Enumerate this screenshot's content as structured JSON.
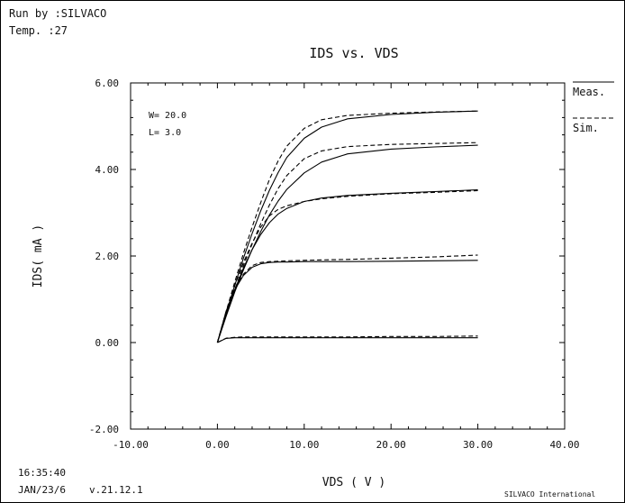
{
  "header": {
    "run_by": "Run by :SILVACO",
    "temp": "Temp.  :27"
  },
  "footer": {
    "time": "16:35:40",
    "date": "JAN/23/6",
    "version": "v.21.12.1",
    "company": "SILVACO International"
  },
  "legend": {
    "meas": "Meas.",
    "sim": "Sim."
  },
  "annotations": {
    "w": "W= 20.0",
    "l": "L= 3.0"
  },
  "chart_data": {
    "type": "line",
    "title": "IDS vs. VDS",
    "xlabel": "VDS ( V )",
    "ylabel": "IDS( mA )",
    "xlim": [
      -10,
      40
    ],
    "ylim": [
      -2,
      6
    ],
    "xticks": [
      -10,
      0,
      10,
      20,
      30,
      40
    ],
    "yticks": [
      -2,
      0,
      2,
      4,
      6
    ],
    "xtick_labels": [
      "-10.00",
      "0.00",
      "10.00",
      "20.00",
      "30.00",
      "40.00"
    ],
    "ytick_labels": [
      "-2.00",
      "0.00",
      "2.00",
      "4.00",
      "6.00"
    ],
    "grid": false,
    "legend_position": "right",
    "series": [
      {
        "name": "Meas.",
        "style": "solid",
        "x": [
          0,
          1,
          2,
          3,
          4,
          5,
          6,
          7,
          8,
          10,
          12,
          15,
          20,
          25,
          30
        ],
        "y": [
          0,
          0.095,
          0.11,
          0.11,
          0.11,
          0.11,
          0.11,
          0.11,
          0.11,
          0.11,
          0.11,
          0.11,
          0.11,
          0.11,
          0.11
        ]
      },
      {
        "name": "Sim.",
        "style": "dashed",
        "x": [
          0,
          1,
          2,
          3,
          4,
          5,
          6,
          7,
          8,
          10,
          12,
          15,
          20,
          25,
          30
        ],
        "y": [
          0,
          0.1,
          0.12,
          0.13,
          0.13,
          0.13,
          0.13,
          0.13,
          0.13,
          0.13,
          0.13,
          0.13,
          0.14,
          0.14,
          0.15
        ]
      },
      {
        "name": "Meas.",
        "style": "solid",
        "x": [
          0,
          1,
          2,
          3,
          4,
          5,
          6,
          7,
          8,
          10,
          12,
          15,
          20,
          25,
          30
        ],
        "y": [
          0,
          0.72,
          1.22,
          1.55,
          1.74,
          1.82,
          1.85,
          1.86,
          1.86,
          1.87,
          1.87,
          1.87,
          1.88,
          1.89,
          1.9
        ]
      },
      {
        "name": "Sim.",
        "style": "dashed",
        "x": [
          0,
          1,
          2,
          3,
          4,
          5,
          6,
          7,
          8,
          10,
          12,
          15,
          20,
          25,
          30
        ],
        "y": [
          0,
          0.7,
          1.25,
          1.58,
          1.78,
          1.85,
          1.87,
          1.88,
          1.89,
          1.9,
          1.91,
          1.92,
          1.95,
          1.98,
          2.02
        ]
      },
      {
        "name": "Meas.",
        "style": "solid",
        "x": [
          0,
          1,
          2,
          3,
          4,
          5,
          6,
          7,
          8,
          10,
          12,
          15,
          20,
          25,
          30
        ],
        "y": [
          0,
          0.65,
          1.22,
          1.72,
          2.15,
          2.5,
          2.77,
          2.97,
          3.1,
          3.26,
          3.34,
          3.4,
          3.45,
          3.49,
          3.53
        ]
      },
      {
        "name": "Sim.",
        "style": "dashed",
        "x": [
          0,
          1,
          2,
          3,
          4,
          5,
          6,
          7,
          8,
          10,
          12,
          15,
          20,
          25,
          30
        ],
        "y": [
          0,
          0.7,
          1.32,
          1.85,
          2.3,
          2.67,
          2.93,
          3.08,
          3.16,
          3.26,
          3.32,
          3.38,
          3.44,
          3.47,
          3.51
        ]
      },
      {
        "name": "Meas.",
        "style": "solid",
        "x": [
          0,
          1,
          2,
          3,
          4,
          5,
          6,
          7,
          8,
          10,
          12,
          15,
          20,
          25,
          30
        ],
        "y": [
          0,
          0.6,
          1.17,
          1.68,
          2.15,
          2.57,
          2.95,
          3.27,
          3.54,
          3.92,
          4.17,
          4.36,
          4.47,
          4.52,
          4.56
        ]
      },
      {
        "name": "Sim.",
        "style": "dashed",
        "x": [
          0,
          1,
          2,
          3,
          4,
          5,
          6,
          7,
          8,
          10,
          12,
          15,
          20,
          25,
          30
        ],
        "y": [
          0,
          0.63,
          1.22,
          1.78,
          2.28,
          2.75,
          3.18,
          3.56,
          3.86,
          4.25,
          4.43,
          4.53,
          4.58,
          4.6,
          4.62
        ]
      },
      {
        "name": "Meas.",
        "style": "solid",
        "x": [
          0,
          1,
          2,
          3,
          4,
          5,
          6,
          7,
          8,
          10,
          12,
          15,
          20,
          25,
          30
        ],
        "y": [
          0,
          0.68,
          1.32,
          1.95,
          2.52,
          3.05,
          3.52,
          3.93,
          4.28,
          4.72,
          4.98,
          5.17,
          5.27,
          5.32,
          5.35
        ]
      },
      {
        "name": "Sim.",
        "style": "dashed",
        "x": [
          0,
          1,
          2,
          3,
          4,
          5,
          6,
          7,
          8,
          10,
          12,
          15,
          20,
          25,
          30
        ],
        "y": [
          0,
          0.71,
          1.4,
          2.06,
          2.67,
          3.24,
          3.77,
          4.2,
          4.54,
          4.95,
          5.15,
          5.25,
          5.3,
          5.33,
          5.35
        ]
      }
    ]
  }
}
